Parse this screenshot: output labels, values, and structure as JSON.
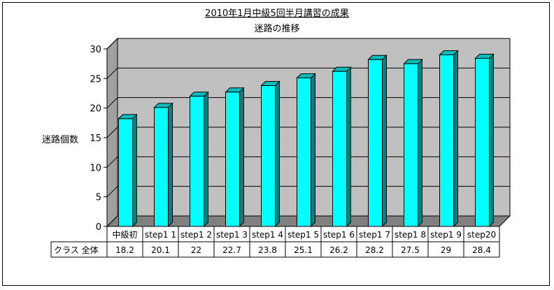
{
  "chart_data": {
    "type": "bar",
    "style": "3d-column-with-data-table",
    "title": "2010年1月中級5回半月講習の成果",
    "subtitle": "迷路の推移",
    "xlabel": "",
    "ylabel": "迷路個数",
    "ylim": [
      0,
      30
    ],
    "yticks": [
      0,
      5,
      10,
      15,
      20,
      25,
      30
    ],
    "grid": true,
    "legend": "none",
    "categories": [
      "中級初",
      "step1 1",
      "step1 2",
      "step1 3",
      "step1 4",
      "step1 5",
      "step1 6",
      "step1 7",
      "step1 8",
      "step1 9",
      "step20"
    ],
    "series": [
      {
        "name": "クラス 全体",
        "values": [
          18.2,
          20.1,
          22,
          22.7,
          23.8,
          25.1,
          26.2,
          28.2,
          27.5,
          29,
          28.4
        ]
      }
    ],
    "table_values": [
      "18.2",
      "20.1",
      "22",
      "22.7",
      "23.8",
      "25.1",
      "26.2",
      "28.2",
      "27.5",
      "29",
      "28.4"
    ],
    "colors": {
      "bar_front": "#00ffff",
      "bar_side": "#008080",
      "bar_top": "#00bcbc",
      "plot_back": "#c0c0c0",
      "plot_floor": "#808080",
      "plot_side": "#a0a0a0"
    }
  }
}
